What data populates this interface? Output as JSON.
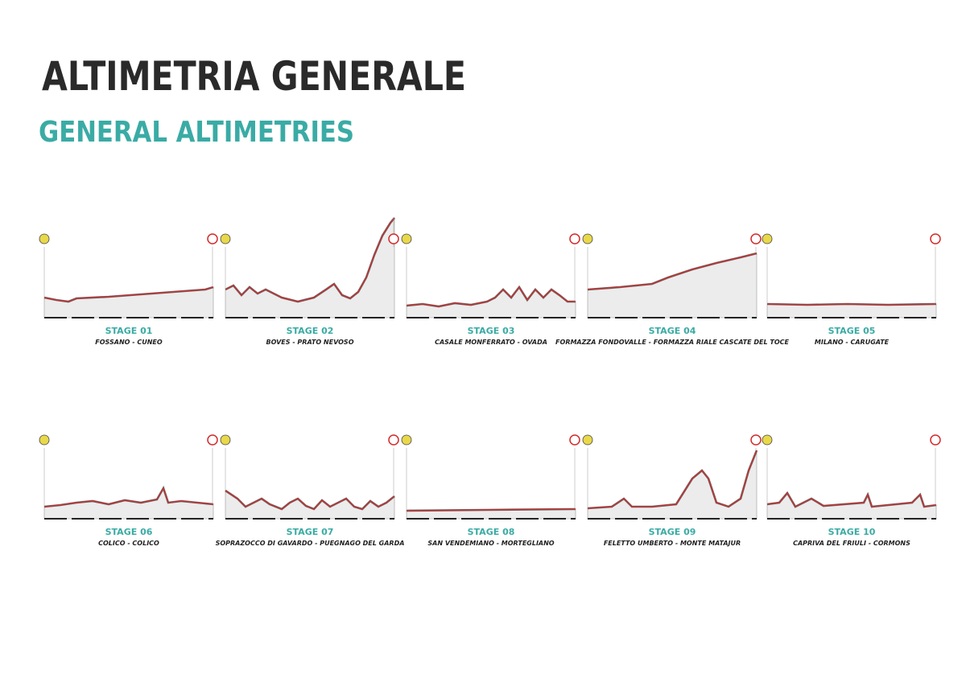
{
  "title": "ALTIMETRIA GENERALE",
  "subtitle": "GENERAL ALTIMETRIES",
  "stages": [
    {
      "label": "STAGE 01",
      "route": "FOSSANO - CUNEO"
    },
    {
      "label": "STAGE 02",
      "route": "BOVES - PRATO NEVOSO"
    },
    {
      "label": "STAGE 03",
      "route": "CASALE MONFERRATO - OVADA"
    },
    {
      "label": "STAGE 04",
      "route": "FORMAZZA FONDOVALLE - FORMAZZA RIALE CASCATE DEL TOCE"
    },
    {
      "label": "STAGE 05",
      "route": "MILANO - CARUGATE"
    },
    {
      "label": "STAGE 06",
      "route": "COLICO - COLICO"
    },
    {
      "label": "STAGE 07",
      "route": "SOPRAZOCCO DI GAVARDO - PUEGNAGO DEL GARDA"
    },
    {
      "label": "STAGE 08",
      "route": "SAN VENDEMIANO - MORTEGLIANO"
    },
    {
      "label": "STAGE 09",
      "route": "FELETTO UMBERTO - MONTE MATAJUR"
    },
    {
      "label": "STAGE 10",
      "route": "CAPRIVA DEL FRIULI - CORMONS"
    }
  ]
}
